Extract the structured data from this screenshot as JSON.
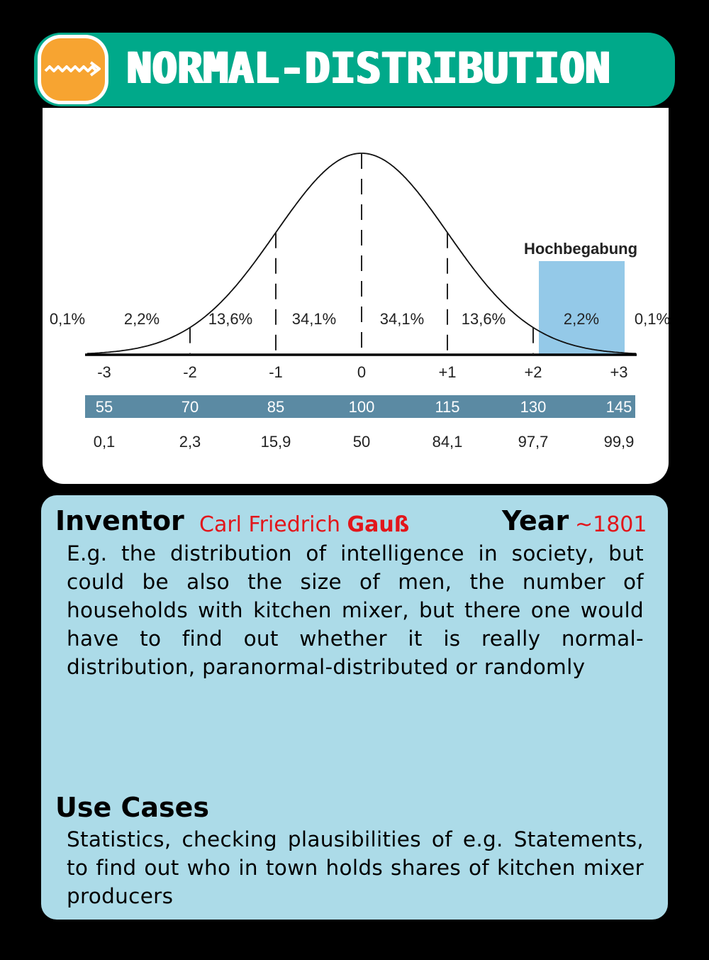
{
  "header": {
    "title": "NORMAL-DISTRIBUTION",
    "icon": "wave-arrow-icon"
  },
  "colors": {
    "header": "#00a98a",
    "logo": "#f7a431",
    "info_bg": "#acdbe8",
    "accent_red": "#e2161b",
    "band": "#5b8aa3",
    "highlight": "#94c9e8"
  },
  "chart_data": {
    "type": "area",
    "sigma_ticks": [
      "-3",
      "-2",
      "-1",
      "0",
      "+1",
      "+2",
      "+3"
    ],
    "iq_values": [
      "55",
      "70",
      "85",
      "100",
      "115",
      "130",
      "145"
    ],
    "percentiles": [
      "0,1",
      "2,3",
      "15,9",
      "50",
      "84,1",
      "97,7",
      "99,9"
    ],
    "region_percentages": [
      "0,1%",
      "2,2%",
      "13,6%",
      "34,1%",
      "34,1%",
      "13,6%",
      "2,2%",
      "0,1%"
    ],
    "highlight_label": "Hochbegabung",
    "highlight_range": [
      2,
      3
    ]
  },
  "info": {
    "inventor_label": "Inventor",
    "inventor_first": "Carl Friedrich ",
    "inventor_last": "Gauß",
    "year_label": "Year",
    "year_value": "~1801",
    "description": "E.g. the distribution of intelligence in society, but could be also the size of men, the number of households with kitchen mixer, but there one would have to find out whether it is really normal-distribution, paranormal-distributed or randomly",
    "use_cases_label": "Use Cases",
    "use_cases": "Statistics, checking plausibilities of e.g. Statements, to find out who in town holds shares of kitchen mixer producers"
  }
}
